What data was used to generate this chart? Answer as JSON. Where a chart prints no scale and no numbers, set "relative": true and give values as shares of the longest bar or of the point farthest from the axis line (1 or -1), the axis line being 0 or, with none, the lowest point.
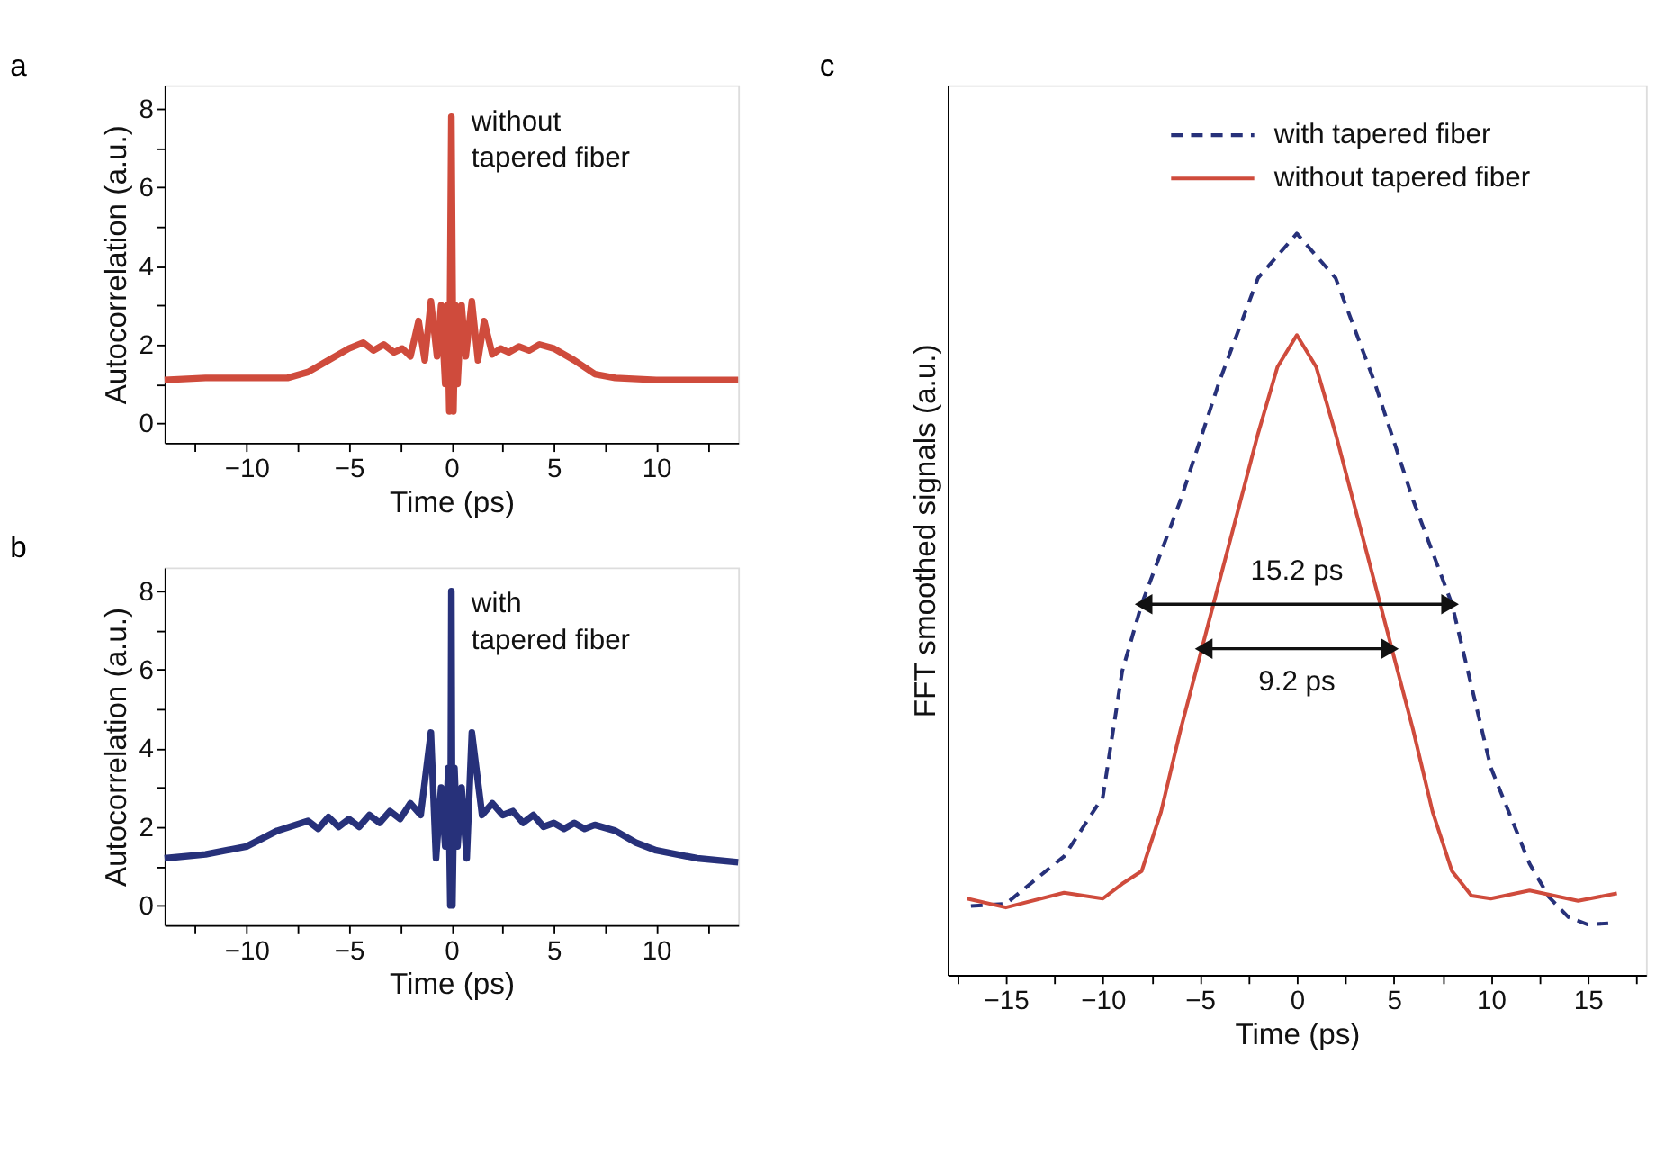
{
  "chart_data": [
    {
      "type": "line",
      "title": "a",
      "xlabel": "Time (ps)",
      "ylabel": "Autocorrelation (a.u.)",
      "xlim": [
        -14,
        14
      ],
      "ylim": [
        -0.5,
        8.6
      ],
      "xticks": [
        {
          "value": -12.5,
          "label": null
        },
        -10,
        {
          "value": -7.5,
          "label": null
        },
        -5,
        {
          "value": -2.5,
          "label": null
        },
        0,
        {
          "value": 2.5,
          "label": null
        },
        5,
        {
          "value": 7.5,
          "label": null
        },
        10,
        {
          "value": 12.5,
          "label": null
        }
      ],
      "yticks": [
        0,
        {
          "value": 1,
          "label": null
        },
        2,
        {
          "value": 3,
          "label": null
        },
        4,
        {
          "value": 5,
          "label": null
        },
        6,
        {
          "value": 7,
          "label": null
        },
        8
      ],
      "grid": false,
      "legend": false,
      "series": [
        {
          "name": "without tapered fiber",
          "color": "#cf4b3c",
          "line_style": "solid",
          "x": [
            -14,
            -12,
            -10,
            -8,
            -7,
            -6,
            -5,
            -4.3,
            -3.8,
            -3.3,
            -2.8,
            -2.4,
            -2,
            -1.6,
            -1.3,
            -1,
            -0.7,
            -0.5,
            -0.3,
            -0.2,
            -0.1,
            0,
            0.1,
            0.2,
            0.3,
            0.5,
            0.7,
            1,
            1.3,
            1.6,
            2,
            2.4,
            2.8,
            3.3,
            3.8,
            4.3,
            5,
            6,
            7,
            8,
            10,
            12,
            14
          ],
          "values": [
            1.1,
            1.15,
            1.15,
            1.15,
            1.3,
            1.6,
            1.9,
            2.05,
            1.85,
            2.0,
            1.8,
            1.9,
            1.7,
            2.6,
            1.6,
            3.1,
            1.7,
            3.0,
            1.0,
            3.0,
            0.3,
            7.8,
            0.3,
            3.0,
            1.0,
            3.0,
            1.7,
            3.1,
            1.6,
            2.6,
            1.75,
            1.9,
            1.8,
            1.95,
            1.85,
            2.0,
            1.9,
            1.6,
            1.25,
            1.15,
            1.1,
            1.1,
            1.1
          ]
        }
      ]
    },
    {
      "type": "line",
      "title": "b",
      "xlabel": "Time (ps)",
      "ylabel": "Autocorrelation (a.u.)",
      "xlim": [
        -14,
        14
      ],
      "ylim": [
        -0.5,
        8.6
      ],
      "xticks": [
        {
          "value": -12.5,
          "label": null
        },
        -10,
        {
          "value": -7.5,
          "label": null
        },
        -5,
        {
          "value": -2.5,
          "label": null
        },
        0,
        {
          "value": 2.5,
          "label": null
        },
        5,
        {
          "value": 7.5,
          "label": null
        },
        10,
        {
          "value": 12.5,
          "label": null
        }
      ],
      "yticks": [
        0,
        {
          "value": 1,
          "label": null
        },
        2,
        {
          "value": 3,
          "label": null
        },
        4,
        {
          "value": 5,
          "label": null
        },
        6,
        {
          "value": 7,
          "label": null
        },
        8
      ],
      "grid": false,
      "legend": false,
      "series": [
        {
          "name": "with tapered fiber",
          "color": "#27317a",
          "line_style": "solid",
          "x": [
            -14,
            -12,
            -10,
            -8.5,
            -7,
            -6.5,
            -6,
            -5.5,
            -5,
            -4.5,
            -4,
            -3.5,
            -3,
            -2.5,
            -2,
            -1.5,
            -1,
            -0.75,
            -0.5,
            -0.3,
            -0.15,
            -0.05,
            0,
            0.05,
            0.15,
            0.3,
            0.5,
            0.75,
            1,
            1.5,
            2,
            2.5,
            3,
            3.5,
            4,
            4.5,
            5,
            5.5,
            6,
            6.5,
            7,
            8,
            9,
            10,
            12,
            14
          ],
          "values": [
            1.2,
            1.3,
            1.5,
            1.9,
            2.15,
            1.95,
            2.25,
            2.0,
            2.2,
            2.0,
            2.3,
            2.1,
            2.4,
            2.2,
            2.6,
            2.3,
            4.4,
            1.2,
            3.0,
            1.5,
            3.5,
            0,
            8.0,
            0,
            3.5,
            1.5,
            3.0,
            1.2,
            4.4,
            2.3,
            2.6,
            2.3,
            2.4,
            2.1,
            2.3,
            2.0,
            2.1,
            1.95,
            2.1,
            1.95,
            2.05,
            1.9,
            1.6,
            1.4,
            1.2,
            1.1
          ]
        }
      ]
    },
    {
      "type": "line",
      "title": "c",
      "xlabel": "Time (ps)",
      "ylabel": "FFT smoothed signals (a.u.)",
      "xlim": [
        -18,
        18
      ],
      "relative": true,
      "xticks": [
        {
          "value": -17.5,
          "label": null
        },
        -15,
        {
          "value": -12.5,
          "label": null
        },
        -10,
        {
          "value": -7.5,
          "label": null
        },
        -5,
        {
          "value": -2.5,
          "label": null
        },
        0,
        {
          "value": 2.5,
          "label": null
        },
        5,
        {
          "value": 7.5,
          "label": null
        },
        10,
        {
          "value": 12.5,
          "label": null
        },
        15,
        {
          "value": 17.5,
          "label": null
        }
      ],
      "grid": false,
      "legend": "top",
      "annotations": [
        {
          "text": "15.2 ps",
          "x": 0,
          "y": 0.5
        },
        {
          "text": "9.2 ps",
          "x": 0,
          "y": 0.44
        }
      ],
      "series": [
        {
          "name": "with tapered fiber",
          "color": "#27317a",
          "line_style": "dashed",
          "x": [
            -16.8,
            -15,
            -12,
            -10,
            -9,
            -8,
            -6,
            -4,
            -2,
            0,
            2,
            4,
            6,
            8,
            10,
            12,
            13,
            14,
            15,
            16.3
          ],
          "values": [
            0.093,
            0.096,
            0.16,
            0.24,
            0.41,
            0.5,
            0.64,
            0.8,
            0.94,
            1.0,
            0.94,
            0.8,
            0.64,
            0.5,
            0.28,
            0.15,
            0.105,
            0.078,
            0.068,
            0.07
          ]
        },
        {
          "name": "without tapered fiber",
          "color": "#cf4b3c",
          "line_style": "solid",
          "x": [
            -17,
            -15,
            -12,
            -10,
            -9,
            -8,
            -7,
            -6,
            -5,
            -4,
            -3,
            -2,
            -1,
            0,
            1,
            2,
            3,
            4,
            5,
            6,
            7,
            8,
            9,
            10,
            12,
            14.5,
            16.5
          ],
          "values": [
            0.103,
            0.091,
            0.111,
            0.103,
            0.123,
            0.14,
            0.22,
            0.33,
            0.43,
            0.53,
            0.63,
            0.73,
            0.82,
            0.863,
            0.82,
            0.73,
            0.63,
            0.53,
            0.43,
            0.33,
            0.22,
            0.14,
            0.107,
            0.103,
            0.114,
            0.1,
            0.11
          ]
        },
        {
          "type": "line",
          "color": "#111111",
          "line_style": "solid",
          "marker": "triangle",
          "x": [
            -7.9,
            7.9
          ],
          "values": [
            0.5,
            0.5
          ]
        },
        {
          "type": "line",
          "color": "#111111",
          "line_style": "solid",
          "marker": "triangle",
          "x": [
            -4.8,
            4.8
          ],
          "values": [
            0.44,
            0.44
          ]
        }
      ]
    }
  ]
}
